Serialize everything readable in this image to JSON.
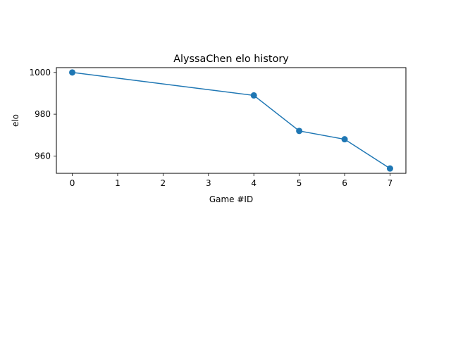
{
  "chart_data": {
    "type": "line",
    "title": "AlyssaChen elo history",
    "xlabel": "Game #ID",
    "ylabel": "elo",
    "x": [
      0,
      4,
      5,
      6,
      7
    ],
    "series": [
      {
        "values": [
          1000,
          989,
          972,
          968,
          954
        ]
      }
    ],
    "xticks": [
      0,
      1,
      2,
      3,
      4,
      5,
      6,
      7
    ],
    "yticks": [
      960,
      980,
      1000
    ],
    "xlim": [
      -0.35,
      7.35
    ],
    "ylim": [
      951.7,
      1002.3
    ],
    "grid": false,
    "marker": "circle",
    "line_color": "#1f77b4"
  }
}
